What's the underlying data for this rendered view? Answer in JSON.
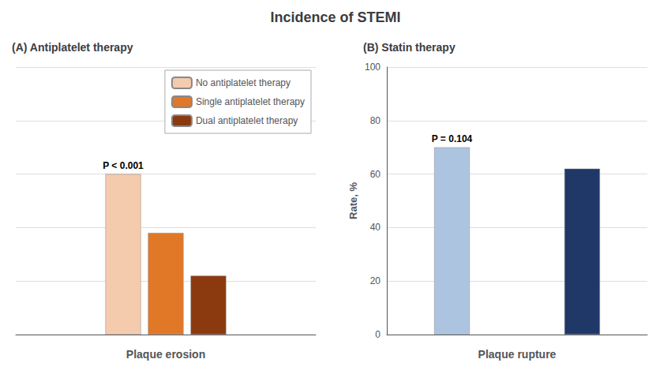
{
  "chart_data": [
    {
      "type": "bar",
      "title": "Incidence of STEMI",
      "subtitle": "(A) Antiplatelet therapy",
      "xlabel": "Plaque erosion",
      "categories": [
        null
      ],
      "series": [
        {
          "name": "No antiplatelet therapy",
          "color": "#F5CBAE",
          "values": [
            60
          ]
        },
        {
          "name": "Single antiplatelet therapy",
          "color": "#E07828",
          "values": [
            38
          ]
        },
        {
          "name": "Dual antiplatelet therapy",
          "color": "#8B3A0F",
          "values": [
            22
          ]
        }
      ],
      "annotation": "P < 0.001",
      "ylim": [
        0,
        100
      ],
      "yticks": [
        0,
        20,
        40,
        60,
        80,
        100
      ],
      "grid": true,
      "legend": "upper right",
      "tick_labels": false
    },
    {
      "type": "bar",
      "subtitle": "(B) Statin therapy",
      "xlabel": "Plaque rupture",
      "ylabel": "Rate, %",
      "categories": [
        null,
        null
      ],
      "values": [
        70,
        62
      ],
      "colors": [
        "#ADC4E0",
        "#1F3868"
      ],
      "annotation": "P = 0.104",
      "ylim": [
        0,
        100
      ],
      "yticks": [
        0,
        20,
        40,
        60,
        80,
        100
      ],
      "grid": true,
      "tick_labels": "y"
    }
  ]
}
